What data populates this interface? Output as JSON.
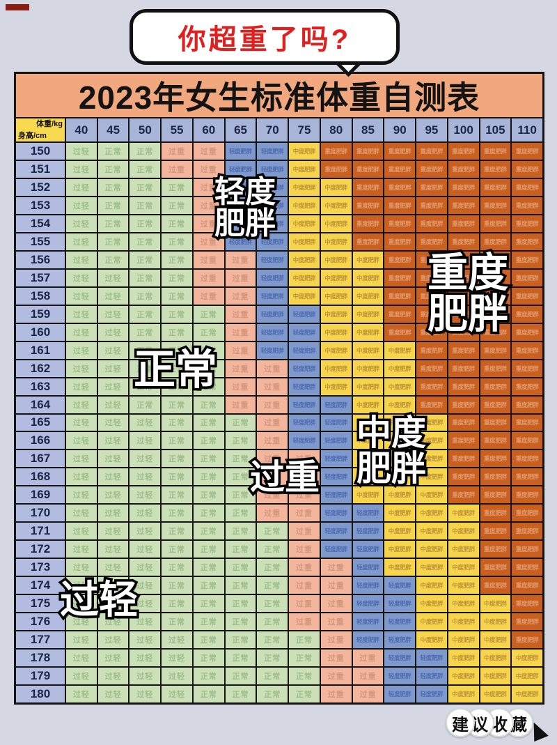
{
  "bubble": {
    "text": "你超重了吗?"
  },
  "table": {
    "title": "2023年女生标准体重自测表",
    "corner": {
      "top": "体重/kg",
      "bottom": "身高/cm"
    },
    "weights": [
      "40",
      "45",
      "50",
      "55",
      "60",
      "65",
      "70",
      "75",
      "80",
      "85",
      "90",
      "95",
      "100",
      "105",
      "110"
    ],
    "rows": [
      {
        "height": "150",
        "cells": [
          "UW",
          "N",
          "N",
          "OW",
          "OW",
          "MI",
          "MI",
          "MO",
          "SE",
          "SE",
          "SE",
          "SE",
          "SE",
          "SE",
          "SE"
        ]
      },
      {
        "height": "151",
        "cells": [
          "UW",
          "N",
          "N",
          "OW",
          "OW",
          "MI",
          "MI",
          "MO",
          "SE",
          "SE",
          "SE",
          "SE",
          "SE",
          "SE",
          "SE"
        ]
      },
      {
        "height": "152",
        "cells": [
          "UW",
          "N",
          "N",
          "N",
          "OW",
          "MI",
          "MI",
          "MO",
          "MO",
          "SE",
          "SE",
          "SE",
          "SE",
          "SE",
          "SE"
        ]
      },
      {
        "height": "153",
        "cells": [
          "UW",
          "N",
          "N",
          "N",
          "OW",
          "MI",
          "MI",
          "MO",
          "MO",
          "SE",
          "SE",
          "SE",
          "SE",
          "SE",
          "SE"
        ]
      },
      {
        "height": "154",
        "cells": [
          "UW",
          "N",
          "N",
          "N",
          "OW",
          "MI",
          "MI",
          "MO",
          "MO",
          "SE",
          "SE",
          "SE",
          "SE",
          "SE",
          "SE"
        ]
      },
      {
        "height": "155",
        "cells": [
          "UW",
          "N",
          "N",
          "N",
          "OW",
          "MI",
          "MI",
          "MO",
          "MO",
          "SE",
          "SE",
          "SE",
          "SE",
          "SE",
          "SE"
        ]
      },
      {
        "height": "156",
        "cells": [
          "UW",
          "N",
          "N",
          "N",
          "OW",
          "OW",
          "MI",
          "MO",
          "MO",
          "MO",
          "SE",
          "SE",
          "SE",
          "SE",
          "SE"
        ]
      },
      {
        "height": "157",
        "cells": [
          "UW",
          "UW",
          "N",
          "N",
          "OW",
          "OW",
          "MI",
          "MO",
          "MO",
          "MO",
          "SE",
          "SE",
          "SE",
          "SE",
          "SE"
        ]
      },
      {
        "height": "158",
        "cells": [
          "UW",
          "UW",
          "N",
          "N",
          "OW",
          "OW",
          "MI",
          "MO",
          "MO",
          "MO",
          "SE",
          "SE",
          "SE",
          "SE",
          "SE"
        ]
      },
      {
        "height": "159",
        "cells": [
          "UW",
          "UW",
          "N",
          "N",
          "N",
          "OW",
          "MI",
          "MI",
          "MO",
          "MO",
          "SE",
          "SE",
          "SE",
          "SE",
          "SE"
        ]
      },
      {
        "height": "160",
        "cells": [
          "UW",
          "UW",
          "N",
          "N",
          "N",
          "OW",
          "MI",
          "MI",
          "MO",
          "MO",
          "SE",
          "SE",
          "SE",
          "SE",
          "SE"
        ]
      },
      {
        "height": "161",
        "cells": [
          "UW",
          "UW",
          "N",
          "N",
          "N",
          "OW",
          "MI",
          "MI",
          "MO",
          "MO",
          "MO",
          "SE",
          "SE",
          "SE",
          "SE"
        ]
      },
      {
        "height": "162",
        "cells": [
          "UW",
          "UW",
          "N",
          "N",
          "N",
          "OW",
          "OW",
          "MI",
          "MO",
          "MO",
          "MO",
          "SE",
          "SE",
          "SE",
          "SE"
        ]
      },
      {
        "height": "163",
        "cells": [
          "UW",
          "UW",
          "N",
          "N",
          "N",
          "OW",
          "OW",
          "MI",
          "MO",
          "MO",
          "MO",
          "SE",
          "SE",
          "SE",
          "SE"
        ]
      },
      {
        "height": "164",
        "cells": [
          "UW",
          "UW",
          "N",
          "N",
          "N",
          "OW",
          "OW",
          "MI",
          "MI",
          "MO",
          "MO",
          "SE",
          "SE",
          "SE",
          "SE"
        ]
      },
      {
        "height": "165",
        "cells": [
          "UW",
          "UW",
          "UW",
          "N",
          "N",
          "N",
          "OW",
          "MI",
          "MI",
          "MO",
          "MO",
          "MO",
          "SE",
          "SE",
          "SE"
        ]
      },
      {
        "height": "166",
        "cells": [
          "UW",
          "UW",
          "UW",
          "N",
          "N",
          "N",
          "OW",
          "MI",
          "MI",
          "MO",
          "MO",
          "MO",
          "SE",
          "SE",
          "SE"
        ]
      },
      {
        "height": "167",
        "cells": [
          "UW",
          "UW",
          "UW",
          "N",
          "N",
          "N",
          "OW",
          "OW",
          "MI",
          "MO",
          "MO",
          "MO",
          "SE",
          "SE",
          "SE"
        ]
      },
      {
        "height": "168",
        "cells": [
          "UW",
          "UW",
          "UW",
          "N",
          "N",
          "N",
          "OW",
          "OW",
          "MI",
          "MO",
          "MO",
          "MO",
          "SE",
          "SE",
          "SE"
        ]
      },
      {
        "height": "169",
        "cells": [
          "UW",
          "UW",
          "UW",
          "N",
          "N",
          "N",
          "OW",
          "OW",
          "MI",
          "MO",
          "MO",
          "MO",
          "SE",
          "SE",
          "SE"
        ]
      },
      {
        "height": "170",
        "cells": [
          "UW",
          "UW",
          "UW",
          "N",
          "N",
          "N",
          "OW",
          "OW",
          "MI",
          "MI",
          "MO",
          "MO",
          "MO",
          "SE",
          "SE"
        ]
      },
      {
        "height": "171",
        "cells": [
          "UW",
          "UW",
          "UW",
          "N",
          "N",
          "N",
          "N",
          "OW",
          "MI",
          "MI",
          "MO",
          "MO",
          "MO",
          "SE",
          "SE"
        ]
      },
      {
        "height": "172",
        "cells": [
          "UW",
          "UW",
          "UW",
          "N",
          "N",
          "N",
          "N",
          "OW",
          "MI",
          "MI",
          "MO",
          "MO",
          "MO",
          "SE",
          "SE"
        ]
      },
      {
        "height": "173",
        "cells": [
          "UW",
          "UW",
          "UW",
          "N",
          "N",
          "N",
          "N",
          "OW",
          "OW",
          "MI",
          "MO",
          "MO",
          "MO",
          "SE",
          "SE"
        ]
      },
      {
        "height": "174",
        "cells": [
          "UW",
          "UW",
          "UW",
          "N",
          "N",
          "N",
          "N",
          "OW",
          "OW",
          "MI",
          "MI",
          "MO",
          "MO",
          "SE",
          "SE"
        ]
      },
      {
        "height": "175",
        "cells": [
          "UW",
          "UW",
          "UW",
          "N",
          "N",
          "N",
          "N",
          "OW",
          "OW",
          "MI",
          "MI",
          "MO",
          "MO",
          "MO",
          "SE"
        ]
      },
      {
        "height": "176",
        "cells": [
          "UW",
          "UW",
          "UW",
          "N",
          "N",
          "N",
          "N",
          "OW",
          "OW",
          "MI",
          "MI",
          "MO",
          "MO",
          "MO",
          "SE"
        ]
      },
      {
        "height": "177",
        "cells": [
          "UW",
          "UW",
          "UW",
          "UW",
          "N",
          "N",
          "N",
          "N",
          "OW",
          "MI",
          "MI",
          "MO",
          "MO",
          "MO",
          "SE"
        ]
      },
      {
        "height": "178",
        "cells": [
          "UW",
          "UW",
          "UW",
          "UW",
          "N",
          "N",
          "N",
          "N",
          "OW",
          "OW",
          "MI",
          "MI",
          "MO",
          "MO",
          "MO"
        ]
      },
      {
        "height": "179",
        "cells": [
          "UW",
          "UW",
          "UW",
          "UW",
          "N",
          "N",
          "N",
          "N",
          "OW",
          "OW",
          "MI",
          "MI",
          "MO",
          "MO",
          "MO"
        ]
      },
      {
        "height": "180",
        "cells": [
          "UW",
          "UW",
          "UW",
          "UW",
          "N",
          "N",
          "N",
          "N",
          "OW",
          "OW",
          "MI",
          "MI",
          "MO",
          "MO",
          "MO"
        ]
      }
    ]
  },
  "categories": {
    "UW": {
      "label": "过轻",
      "bg": "#cbe0b6",
      "fg": "#9fbc8c"
    },
    "N": {
      "label": "正常",
      "bg": "#cbe0b6",
      "fg": "#9fbc8c"
    },
    "OW": {
      "label": "过重",
      "bg": "#f3b69c",
      "fg": "#d3977e"
    },
    "MI": {
      "label": "轻度肥胖",
      "bg": "#8099cd",
      "fg": "#4d6bb0"
    },
    "MO": {
      "label": "中度肥胖",
      "bg": "#f6d44c",
      "fg": "#bd9338"
    },
    "SE": {
      "label": "重度肥胖",
      "bg": "#c96020",
      "fg": "#e29a70"
    }
  },
  "overlays": [
    {
      "id": "light-obesity",
      "text": "轻度\n肥胖"
    },
    {
      "id": "severe-obesity",
      "text": "重度\n肥胖"
    },
    {
      "id": "normal",
      "text": "正常"
    },
    {
      "id": "moderate-obesity",
      "text": "中度\n肥胖"
    },
    {
      "id": "overweight",
      "text": "过重"
    },
    {
      "id": "underweight",
      "text": "过轻"
    }
  ],
  "badge": {
    "chars": [
      "建",
      "议",
      "收",
      "藏"
    ]
  },
  "colors": {
    "page_bg": "#d5d8e3",
    "title_bg": "#f1a87e",
    "corner_bg": "#f7d94f",
    "header_bg": "#a8b4d8",
    "row_label_bg": "#b1bce0",
    "grid_line": "#141414",
    "bubble_text": "#e01f1f"
  }
}
